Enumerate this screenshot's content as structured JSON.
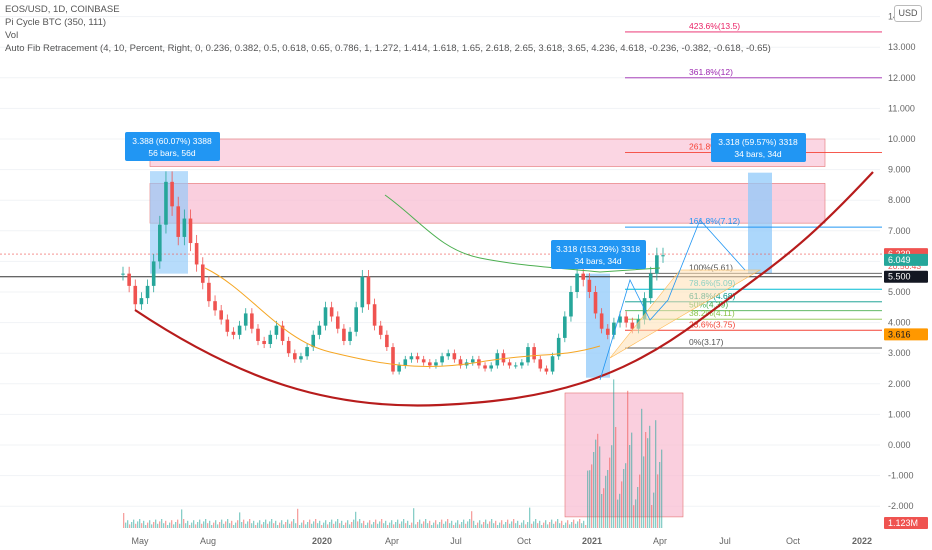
{
  "header": {
    "symbol_line": "EOS/USD, 1D, COINBASE",
    "indicators": [
      "Pi Cycle BTC (350, 111)",
      "Vol",
      "Auto Fib Retracement (4, 10, Percent, Right, 0, 0.236, 0.382, 0.5, 0.618, 0.65, 0.786, 1, 1.272, 1.414, 1.618, 1.65, 2.618, 2.65, 3.618, 3.65, 4.236, 4.618, -0.236, -0.382, -0.618, -0.65)"
    ],
    "currency_button": "USD"
  },
  "colors": {
    "candle_up": "#26a69a",
    "candle_down": "#ef5350",
    "cup_curve": "#b71c1c",
    "ma_green": "#4caf50",
    "ma_orange": "#f5a623",
    "zone_fill": "#f8bbd0",
    "measure_fill": "#90caf9",
    "label_bg": "#2196f3"
  },
  "chart_data": {
    "type": "line",
    "title": "EOS/USD, 1D, COINBASE",
    "xlabel": "",
    "ylabel": "",
    "ylim": [
      -2.5,
      14.3
    ],
    "x_ticks": [
      "May",
      "Aug",
      "2020",
      "Apr",
      "Jul",
      "Oct",
      "2021",
      "Apr",
      "Jul",
      "Oct",
      "2022"
    ],
    "y_ticks": [
      "14.000",
      "13.000",
      "12.000",
      "11.000",
      "10.000",
      "9.000",
      "8.000",
      "7.000",
      "6.000",
      "5.000",
      "4.000",
      "3.000",
      "2.000",
      "1.000",
      "0.000",
      "-1.000",
      "-2.000"
    ],
    "series": [
      {
        "values": [
          5.6,
          5.2,
          4.6,
          4.8,
          5.2,
          6.0,
          7.2,
          8.6,
          7.8,
          6.8,
          7.4,
          6.6,
          5.9,
          5.3,
          4.7,
          4.4,
          4.1,
          3.7,
          3.6,
          3.9,
          4.3,
          3.8,
          3.4,
          3.3,
          3.6,
          3.9,
          3.4,
          3.0,
          2.8,
          2.9,
          3.2,
          3.6,
          3.9,
          4.5,
          4.2,
          3.8,
          3.4,
          3.7,
          4.5,
          5.5,
          4.6,
          3.9,
          3.6,
          3.2,
          2.4,
          2.6,
          2.8,
          2.9,
          2.8,
          2.7,
          2.6,
          2.7,
          2.9,
          3.0,
          2.8,
          2.6,
          2.7,
          2.8,
          2.6,
          2.5,
          2.6,
          3.0,
          2.7,
          2.6,
          2.6,
          2.7,
          3.2,
          2.8,
          2.5,
          2.4,
          2.9,
          3.5,
          4.2,
          5.0,
          5.6,
          5.4,
          5.0,
          4.3,
          3.8,
          3.6,
          4.0,
          4.2,
          4.0,
          3.8,
          4.1,
          4.8,
          5.6,
          6.2,
          6.2
        ]
      }
    ]
  },
  "price_labels": {
    "current": "6.239",
    "countdown": "20:56:43",
    "level_green": "6.049",
    "level_dark": "5.500",
    "level_orange": "3.616",
    "volume": "1.123M"
  },
  "callouts": [
    {
      "line1": "3.388 (60.07%) 3388",
      "line2": "56 bars, 56d"
    },
    {
      "line1": "3.318 (153.29%) 3318",
      "line2": "34 bars, 34d"
    },
    {
      "line1": "3.318 (59.57%) 3318",
      "line2": "34 bars, 34d"
    }
  ],
  "fib_levels": [
    {
      "label": "423.6%(13.5)",
      "color": "#e91e63"
    },
    {
      "label": "361.8%(12)",
      "color": "#9c27b0"
    },
    {
      "label": "261.8%(9.56)",
      "color": "#f44336"
    },
    {
      "label": "161.8%(7.12)",
      "color": "#2196f3"
    },
    {
      "label": "100%(5.61)",
      "color": "#555555"
    },
    {
      "label": "78.6%(5.09)",
      "color": "#00bcd4"
    },
    {
      "label": "61.8%(4.68)",
      "color": "#009688"
    },
    {
      "label": "50%(4.39)",
      "color": "#4caf50"
    },
    {
      "label": "38.2%(4.11)",
      "color": "#8bc34a"
    },
    {
      "label": "23.6%(3.75)",
      "color": "#f44336"
    },
    {
      "label": "0%(3.17)",
      "color": "#555555"
    }
  ]
}
